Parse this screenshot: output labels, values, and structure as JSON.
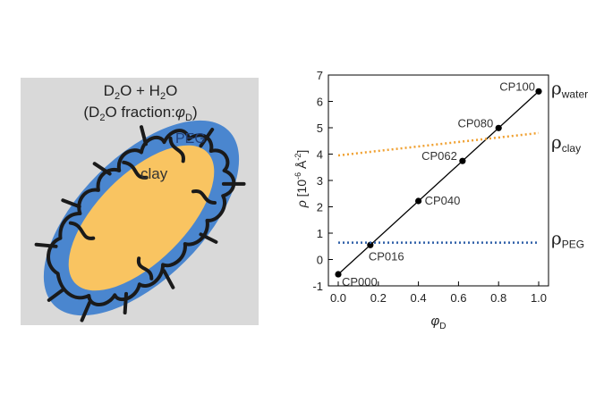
{
  "schematic": {
    "solvent_label": {
      "main": "D",
      "sub1": "2",
      "mid": "O + H",
      "sub2": "2",
      "end": "O"
    },
    "fraction_label": {
      "open": "(D",
      "sub1": "2",
      "mid": "O  fraction:",
      "phi": "φ",
      "phi_sub": "D",
      "close": ")"
    },
    "shell_label": "PEG",
    "core_label": "clay",
    "colors": {
      "background": "#d9d9d9",
      "shell": "#4a86cf",
      "core": "#f9c461",
      "polymer": "#1a1a1a"
    }
  },
  "chart_data": {
    "type": "line",
    "xlabel": {
      "symbol": "φ",
      "sub": "D"
    },
    "ylabel": {
      "symbol": "ρ",
      "text": "[10",
      "exp": "-6",
      "unit": "Å",
      "unit_exp": "-2",
      "close": "]"
    },
    "xlim": [
      0.0,
      1.0
    ],
    "ylim": [
      -1,
      7
    ],
    "xticks": [
      0.0,
      0.2,
      0.4,
      0.6,
      0.8,
      1.0
    ],
    "xtick_labels": [
      "0.0",
      "0.2",
      "0.4",
      "0.6",
      "0.8",
      "1.0"
    ],
    "yticks": [
      -1,
      0,
      1,
      2,
      3,
      4,
      5,
      6,
      7
    ],
    "ytick_labels": [
      "-1",
      "0",
      "1",
      "2",
      "3",
      "4",
      "5",
      "6",
      "7"
    ],
    "series": [
      {
        "name": "solvent",
        "style": "solid",
        "color": "#000000",
        "line": [
          [
            0.0,
            -0.56
          ],
          [
            1.0,
            6.38
          ]
        ],
        "points": [
          {
            "x": 0.0,
            "y": -0.56,
            "label": "CP000"
          },
          {
            "x": 0.16,
            "y": 0.55,
            "label": "CP016"
          },
          {
            "x": 0.4,
            "y": 2.22,
            "label": "CP040"
          },
          {
            "x": 0.62,
            "y": 3.74,
            "label": "CP062"
          },
          {
            "x": 0.8,
            "y": 4.99,
            "label": "CP080"
          },
          {
            "x": 1.0,
            "y": 6.38,
            "label": "CP100"
          }
        ]
      },
      {
        "name": "clay",
        "style": "dotted",
        "color": "#f0a030",
        "line": [
          [
            0.0,
            3.95
          ],
          [
            1.0,
            4.8
          ]
        ]
      },
      {
        "name": "PEG",
        "style": "dotted",
        "color": "#2f5fa8",
        "line": [
          [
            0.0,
            0.64
          ],
          [
            1.0,
            0.64
          ]
        ]
      }
    ],
    "right_labels": [
      {
        "sym": "ρ",
        "sub": "water",
        "y": 6.55
      },
      {
        "sym": "ρ",
        "sub": "clay",
        "y": 4.5
      },
      {
        "sym": "ρ",
        "sub": "PEG",
        "y": 0.85
      }
    ]
  }
}
